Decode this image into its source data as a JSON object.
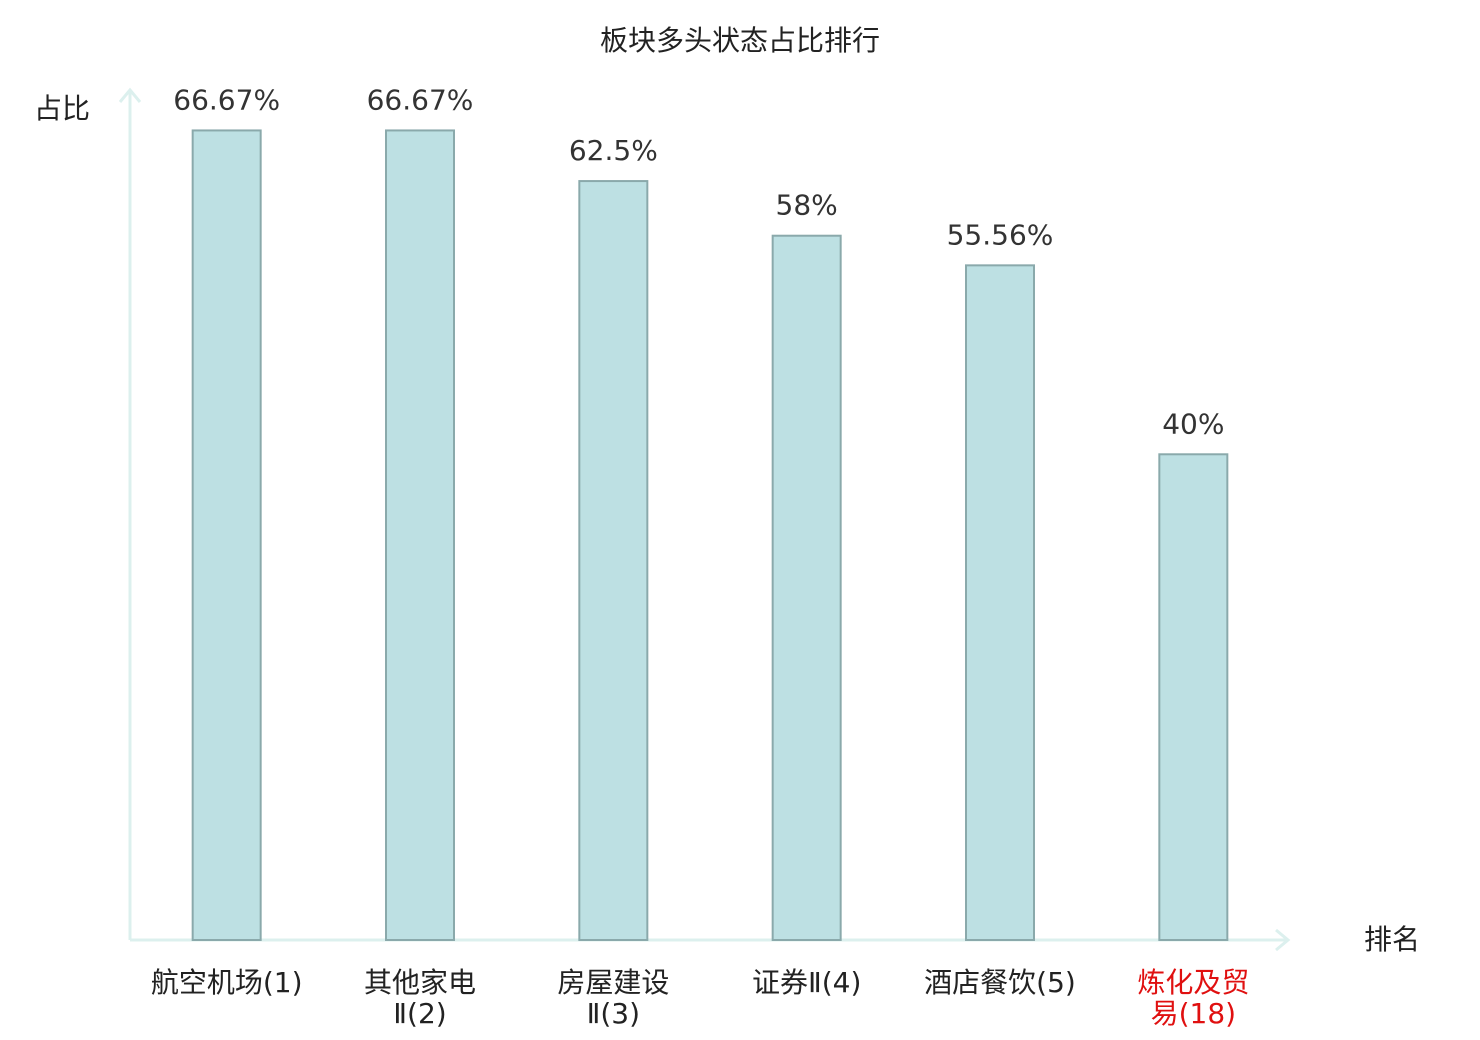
{
  "chart_data": {
    "type": "bar",
    "title": "板块多头状态占比排行",
    "y_label": "占比",
    "x_label": "排名",
    "categories": [
      [
        "航空机场(1)"
      ],
      [
        "其他家电",
        "Ⅱ(2)"
      ],
      [
        "房屋建设",
        "Ⅱ(3)"
      ],
      [
        "证券Ⅱ(4)"
      ],
      [
        "酒店餐饮(5)"
      ],
      [
        "炼化及贸",
        "易(18)"
      ]
    ],
    "category_colors": [
      "#222222",
      "#222222",
      "#222222",
      "#222222",
      "#222222",
      "#e01010"
    ],
    "values": [
      66.67,
      66.67,
      62.5,
      58,
      55.56,
      40
    ],
    "value_labels": [
      "66.67%",
      "66.67%",
      "62.5%",
      "58%",
      "55.56%",
      "40%"
    ],
    "color": "#bde0e3",
    "ylim": [
      0,
      70
    ]
  }
}
